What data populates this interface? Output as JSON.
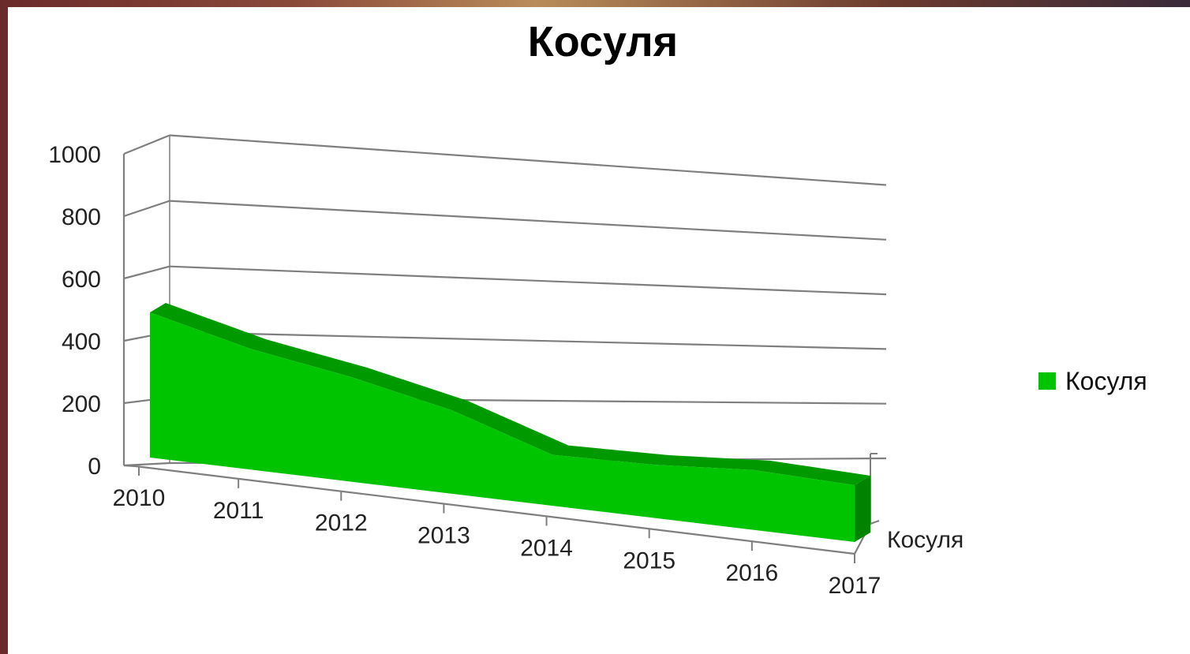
{
  "chart_data": {
    "type": "area",
    "title": "Косуля",
    "categories": [
      "2010",
      "2011",
      "2012",
      "2013",
      "2014",
      "2015",
      "2016",
      "2017"
    ],
    "series": [
      {
        "name": "Косуля",
        "values": [
          400,
          350,
          320,
          270,
          175,
          195,
          235,
          240
        ]
      }
    ],
    "ylim": [
      0,
      1000
    ],
    "yticks": [
      "0",
      "200",
      "400",
      "600",
      "800",
      "1000"
    ],
    "depth_axis_label": "Косуля",
    "grid": true,
    "legend_position": "right",
    "view": "3d"
  },
  "colors": {
    "series_front": "#00c400",
    "series_top": "#009a00",
    "series_side": "#008400",
    "grid": "#7f7f7f"
  }
}
